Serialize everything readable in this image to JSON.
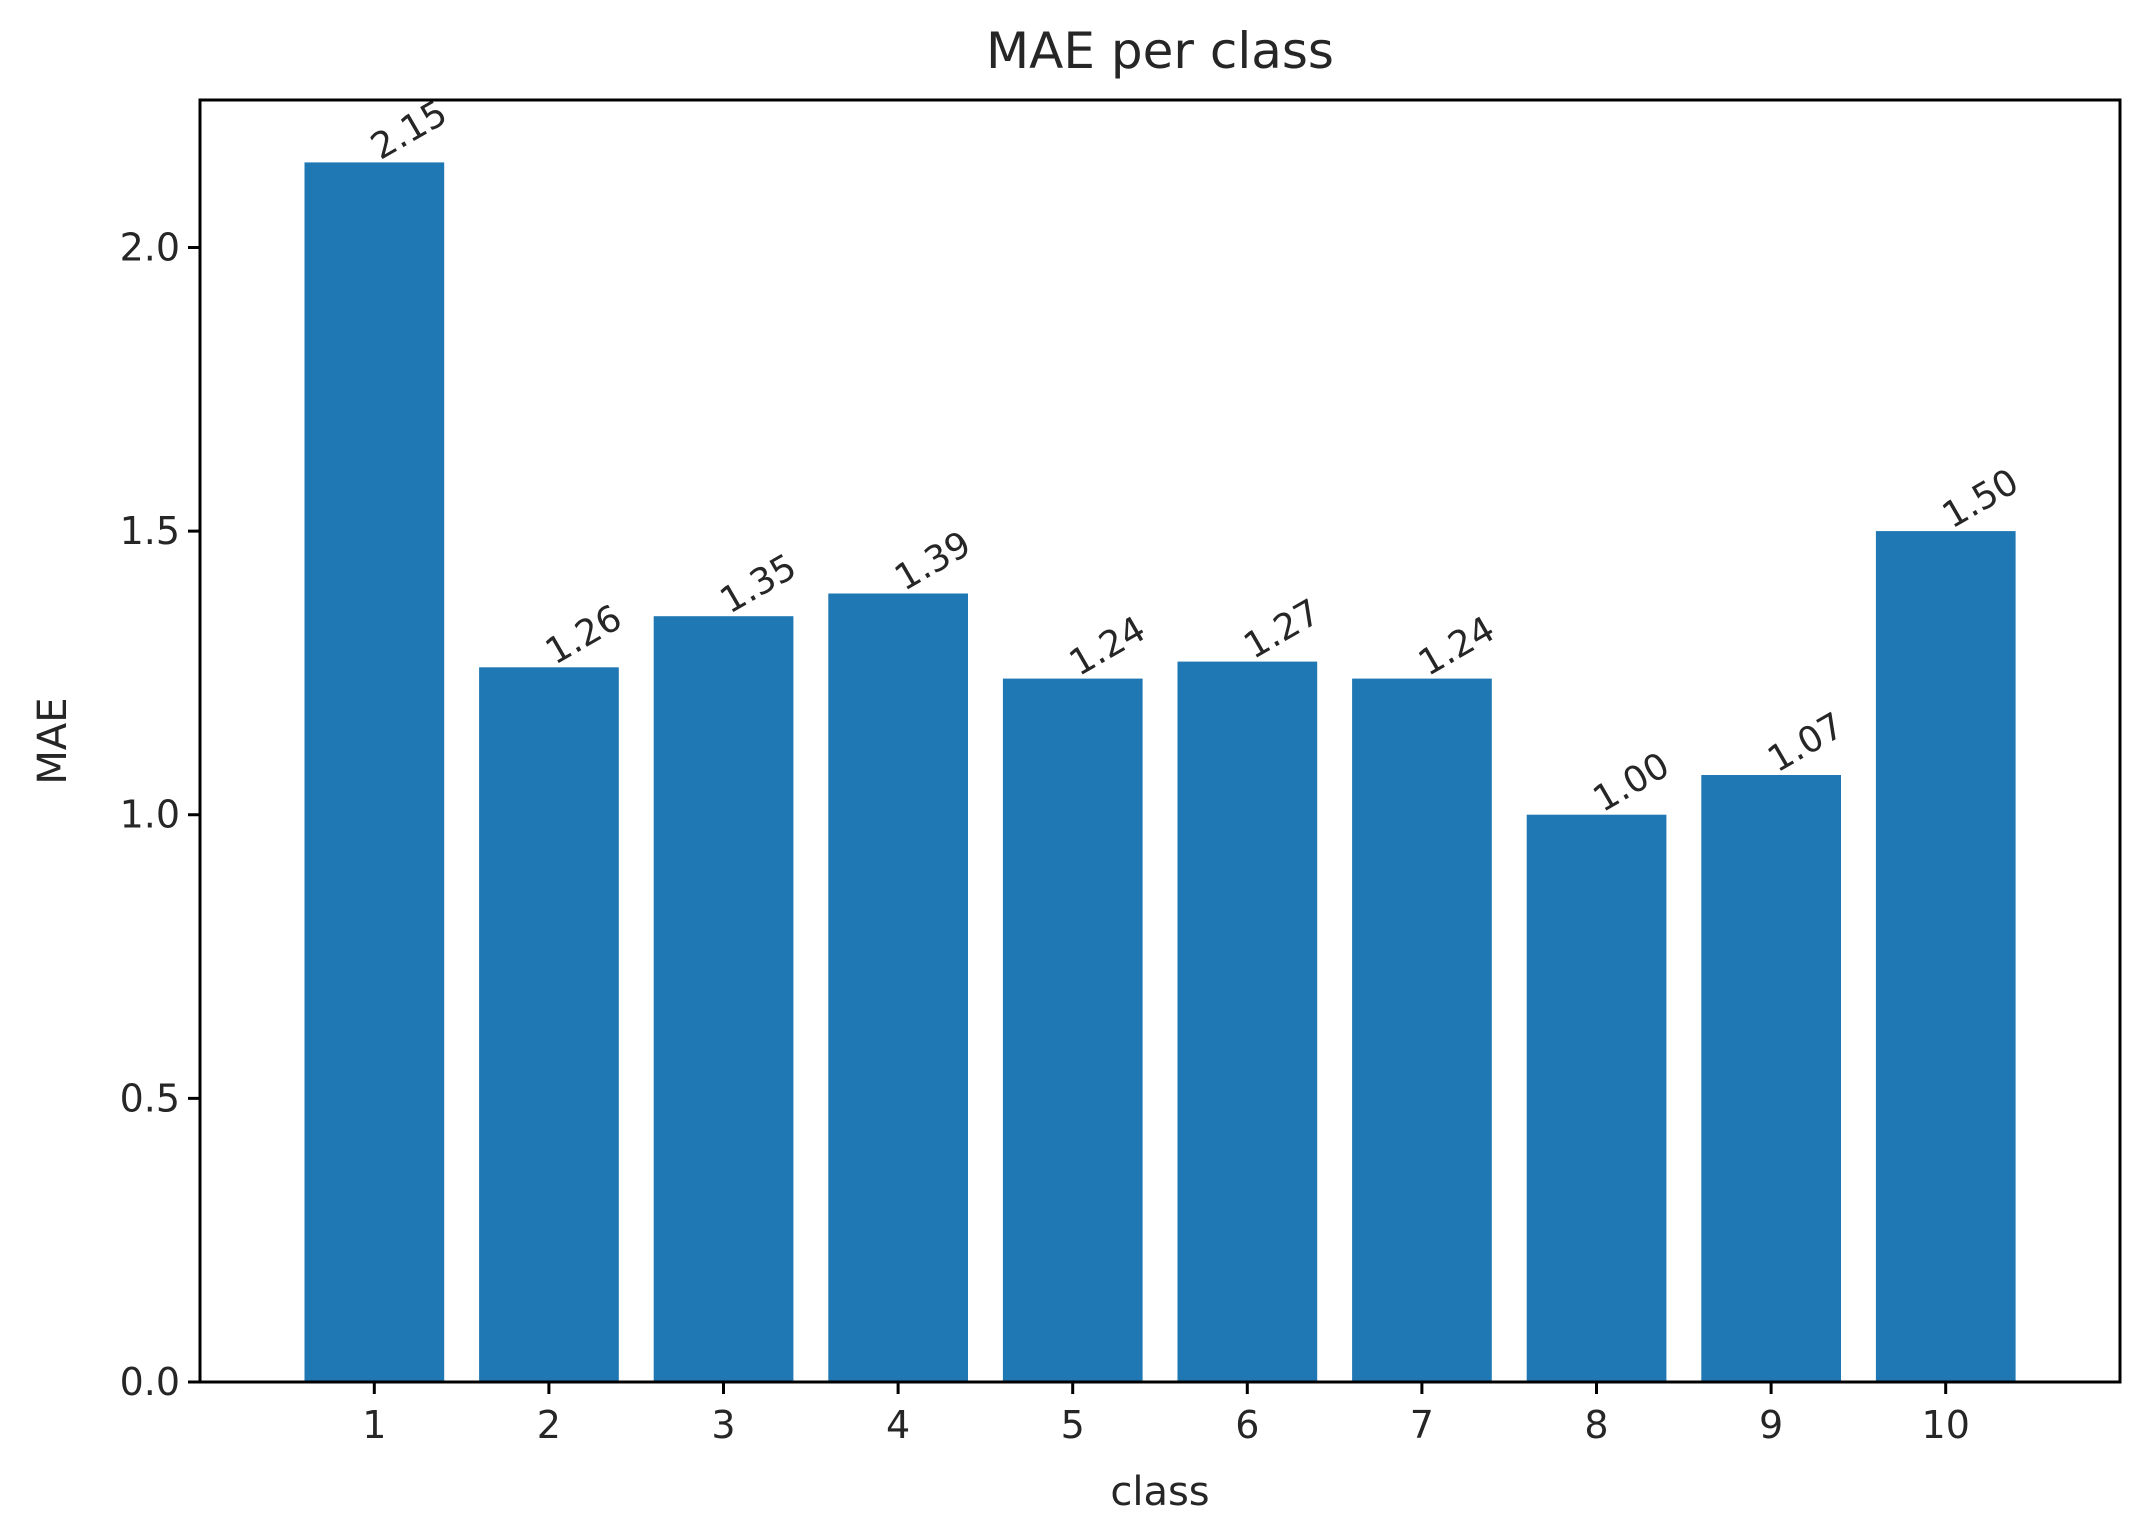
{
  "chart_data": {
    "type": "bar",
    "title": "MAE per class",
    "xlabel": "class",
    "ylabel": "MAE",
    "categories": [
      "1",
      "2",
      "3",
      "4",
      "5",
      "6",
      "7",
      "8",
      "9",
      "10"
    ],
    "values": [
      2.15,
      1.26,
      1.35,
      1.39,
      1.24,
      1.27,
      1.24,
      1.0,
      1.07,
      1.5
    ],
    "value_labels": [
      "2.15",
      "1.26",
      "1.35",
      "1.39",
      "1.24",
      "1.27",
      "1.24",
      "1.00",
      "1.07",
      "1.50"
    ],
    "ylim": [
      0,
      2.26
    ],
    "yticks": [
      0.0,
      0.5,
      1.0,
      1.5,
      2.0
    ],
    "ytick_labels": [
      "0.0",
      "0.5",
      "1.0",
      "1.5",
      "2.0"
    ],
    "grid": false,
    "bar_color": "#1f77b4"
  }
}
